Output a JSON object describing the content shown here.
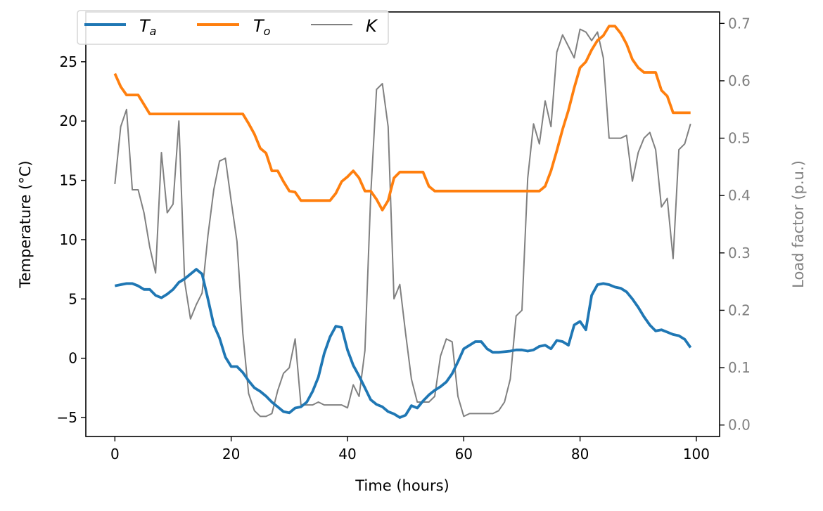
{
  "chart_data": {
    "type": "line",
    "xlabel": "Time (hours)",
    "ylabel": "Temperature (°C)",
    "ylabel_right": "Load factor (p.u.)",
    "xlim": [
      -5,
      104
    ],
    "ylim": [
      -6.6,
      29.2
    ],
    "ylim_right": [
      -0.02,
      0.72
    ],
    "xticks": [
      0,
      20,
      40,
      60,
      80,
      100
    ],
    "yticks": [
      -5,
      0,
      5,
      10,
      15,
      20,
      25
    ],
    "yticks_right": [
      0.0,
      0.1,
      0.2,
      0.3,
      0.4,
      0.5,
      0.6,
      0.7
    ],
    "ytick_labels": [
      "−5",
      "0",
      "5",
      "10",
      "15",
      "20",
      "25"
    ],
    "yticks_right_labels": [
      "0.0",
      "0.1",
      "0.2",
      "0.3",
      "0.4",
      "0.5",
      "0.6",
      "0.7"
    ],
    "grid": false,
    "legend_placement": "top-left",
    "series": [
      {
        "name": "T_a",
        "label_main": "T",
        "label_sub": "a",
        "axis": "left",
        "color": "#1f77b4",
        "values": [
          6.1,
          6.2,
          6.3,
          6.3,
          6.1,
          5.8,
          5.8,
          5.3,
          5.1,
          5.4,
          5.8,
          6.4,
          6.7,
          7.1,
          7.5,
          7.1,
          5.0,
          2.8,
          1.7,
          0.1,
          -0.7,
          -0.7,
          -1.2,
          -1.9,
          -2.5,
          -2.8,
          -3.2,
          -3.7,
          -4.1,
          -4.5,
          -4.6,
          -4.2,
          -4.1,
          -3.7,
          -2.8,
          -1.6,
          0.4,
          1.8,
          2.7,
          2.6,
          0.7,
          -0.6,
          -1.5,
          -2.5,
          -3.5,
          -3.9,
          -4.1,
          -4.5,
          -4.7,
          -5.0,
          -4.8,
          -4.0,
          -4.2,
          -3.6,
          -3.1,
          -2.7,
          -2.4,
          -2.0,
          -1.3,
          -0.3,
          0.8,
          1.1,
          1.4,
          1.4,
          0.8,
          0.5,
          0.5,
          0.55,
          0.6,
          0.7,
          0.7,
          0.6,
          0.7,
          1.0,
          1.1,
          0.8,
          1.5,
          1.4,
          1.1,
          2.8,
          3.1,
          2.4,
          5.3,
          6.2,
          6.3,
          6.2,
          6.0,
          5.9,
          5.6,
          5.0,
          4.3,
          3.5,
          2.8,
          2.3,
          2.4,
          2.2,
          2.0,
          1.9,
          1.6,
          0.9
        ]
      },
      {
        "name": "T_o",
        "label_main": "T",
        "label_sub": "o",
        "axis": "left",
        "color": "#ff7f0e",
        "values": [
          24.0,
          22.9,
          22.2,
          22.2,
          22.2,
          21.4,
          20.6,
          20.6,
          20.6,
          20.6,
          20.6,
          20.6,
          20.6,
          20.6,
          20.6,
          20.6,
          20.6,
          20.6,
          20.6,
          20.6,
          20.6,
          20.6,
          20.6,
          19.8,
          18.9,
          17.7,
          17.3,
          15.8,
          15.8,
          14.9,
          14.1,
          14.0,
          13.3,
          13.3,
          13.3,
          13.3,
          13.3,
          13.3,
          13.9,
          14.9,
          15.3,
          15.8,
          15.2,
          14.1,
          14.1,
          13.4,
          12.5,
          13.3,
          15.2,
          15.7,
          15.7,
          15.7,
          15.7,
          15.7,
          14.5,
          14.1,
          14.1,
          14.1,
          14.1,
          14.1,
          14.1,
          14.1,
          14.1,
          14.1,
          14.1,
          14.1,
          14.1,
          14.1,
          14.1,
          14.1,
          14.1,
          14.1,
          14.1,
          14.1,
          14.5,
          15.8,
          17.5,
          19.3,
          20.9,
          22.8,
          24.5,
          25.0,
          26.0,
          26.8,
          27.2,
          28.0,
          28.0,
          27.4,
          26.5,
          25.2,
          24.5,
          24.1,
          24.1,
          24.1,
          22.6,
          22.1,
          20.7,
          20.7,
          20.7,
          20.7
        ]
      },
      {
        "name": "K",
        "label_main": "K",
        "label_sub": "",
        "axis": "right",
        "color": "#808080",
        "values": [
          0.42,
          0.52,
          0.55,
          0.41,
          0.41,
          0.37,
          0.31,
          0.265,
          0.475,
          0.37,
          0.385,
          0.53,
          0.25,
          0.185,
          0.21,
          0.23,
          0.33,
          0.41,
          0.46,
          0.465,
          0.39,
          0.32,
          0.16,
          0.055,
          0.025,
          0.015,
          0.015,
          0.02,
          0.06,
          0.09,
          0.1,
          0.15,
          0.035,
          0.035,
          0.035,
          0.04,
          0.035,
          0.035,
          0.035,
          0.035,
          0.03,
          0.07,
          0.05,
          0.13,
          0.4,
          0.585,
          0.595,
          0.52,
          0.22,
          0.245,
          0.16,
          0.08,
          0.04,
          0.04,
          0.04,
          0.05,
          0.12,
          0.15,
          0.145,
          0.05,
          0.015,
          0.02,
          0.02,
          0.02,
          0.02,
          0.02,
          0.025,
          0.04,
          0.08,
          0.19,
          0.2,
          0.43,
          0.525,
          0.49,
          0.565,
          0.52,
          0.65,
          0.68,
          0.66,
          0.64,
          0.69,
          0.685,
          0.67,
          0.685,
          0.64,
          0.5,
          0.5,
          0.5,
          0.505,
          0.425,
          0.475,
          0.5,
          0.51,
          0.48,
          0.38,
          0.395,
          0.29,
          0.48,
          0.49,
          0.525
        ]
      }
    ]
  }
}
